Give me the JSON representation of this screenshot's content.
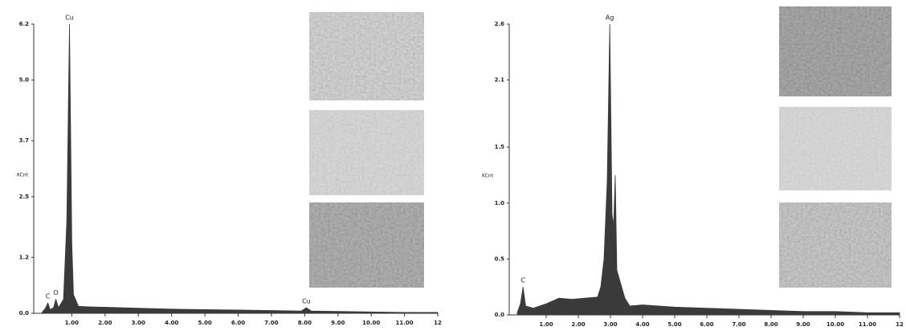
{
  "chart_data": [
    {
      "type": "area",
      "color": "#3a3a3a",
      "y_label": "KCnt",
      "x": [
        0.1,
        0.2,
        0.28,
        0.35,
        0.45,
        0.52,
        0.6,
        0.75,
        0.85,
        0.93,
        1.0,
        1.05,
        1.2,
        1.5,
        2,
        3,
        4,
        5,
        6,
        7,
        7.9,
        8.05,
        8.2,
        9,
        10,
        11,
        12
      ],
      "values": [
        0.02,
        0.1,
        0.22,
        0.08,
        0.12,
        0.3,
        0.12,
        0.3,
        2.0,
        6.2,
        1.5,
        0.4,
        0.15,
        0.14,
        0.13,
        0.11,
        0.09,
        0.08,
        0.07,
        0.06,
        0.05,
        0.12,
        0.05,
        0.04,
        0.03,
        0.02,
        0.02
      ],
      "xlim": [
        0,
        12
      ],
      "ylim": [
        0,
        6.2
      ],
      "xticks": [
        {
          "value": 1,
          "label": "1.00"
        },
        {
          "value": 2,
          "label": "2.00"
        },
        {
          "value": 3,
          "label": "3.00"
        },
        {
          "value": 4,
          "label": "4.00"
        },
        {
          "value": 5,
          "label": "5.00"
        },
        {
          "value": 6,
          "label": "6.00"
        },
        {
          "value": 7,
          "label": "7.00"
        },
        {
          "value": 8,
          "label": "8.00"
        },
        {
          "value": 9,
          "label": "9.00"
        },
        {
          "value": 10,
          "label": "10.00"
        },
        {
          "value": 11,
          "label": "11.00"
        },
        12
      ],
      "yticks": [
        {
          "value": 0,
          "label": "0.0"
        },
        1.2,
        2.5,
        3.7,
        {
          "value": 5,
          "label": "5.0"
        },
        6.2
      ],
      "annotations": [
        {
          "text": "C",
          "x": 0.28,
          "y": 0.22
        },
        {
          "text": "O",
          "x": 0.52,
          "y": 0.3
        },
        {
          "text": "Cu",
          "x": 0.93,
          "y": 6.2
        },
        {
          "text": "Cu",
          "x": 8.05,
          "y": 0.12
        }
      ]
    },
    {
      "type": "area",
      "color": "#3a3a3a",
      "y_label": "KCnt",
      "x": [
        0.1,
        0.2,
        0.28,
        0.36,
        0.6,
        1.0,
        1.4,
        1.8,
        2.2,
        2.6,
        2.7,
        2.8,
        2.9,
        2.98,
        3.05,
        3.1,
        3.15,
        3.2,
        3.3,
        3.45,
        3.6,
        4,
        5,
        6,
        7,
        8,
        9,
        10,
        11,
        12
      ],
      "values": [
        0.02,
        0.1,
        0.25,
        0.08,
        0.06,
        0.1,
        0.15,
        0.14,
        0.15,
        0.16,
        0.25,
        0.5,
        1.2,
        2.6,
        0.9,
        0.8,
        1.25,
        0.4,
        0.3,
        0.15,
        0.08,
        0.09,
        0.07,
        0.06,
        0.05,
        0.04,
        0.03,
        0.03,
        0.02,
        0.02
      ],
      "xlim": [
        0,
        12
      ],
      "ylim": [
        0,
        2.6
      ],
      "xticks": [
        {
          "value": 1,
          "label": "1.00"
        },
        {
          "value": 2,
          "label": "2.00"
        },
        {
          "value": 3,
          "label": "3.00"
        },
        {
          "value": 4,
          "label": "4.00"
        },
        {
          "value": 5,
          "label": "5.00"
        },
        {
          "value": 6,
          "label": "6.00"
        },
        {
          "value": 7,
          "label": "7.00"
        },
        {
          "value": 8,
          "label": "8.00"
        },
        {
          "value": 9,
          "label": "9.00"
        },
        {
          "value": 10,
          "label": "10.00"
        },
        {
          "value": 11,
          "label": "11.00"
        },
        12
      ],
      "yticks": [
        {
          "value": 0,
          "label": "0.0"
        },
        0.5,
        {
          "value": 1,
          "label": "1.0"
        },
        1.5,
        2.1,
        2.6
      ],
      "annotations": [
        {
          "text": "C",
          "x": 0.28,
          "y": 0.25
        },
        {
          "text": "Ag",
          "x": 2.98,
          "y": 2.6
        }
      ]
    }
  ]
}
